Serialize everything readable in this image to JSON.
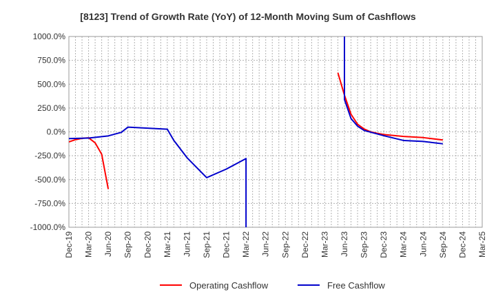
{
  "chart_data": {
    "type": "line",
    "title": "[8123]  Trend of Growth Rate (YoY) of 12-Month Moving Sum of Cashflows",
    "xlabel": "",
    "ylabel": "",
    "ylim": [
      -1000,
      1000
    ],
    "y_ticks": [
      "1000.0%",
      "750.0%",
      "500.0%",
      "250.0%",
      "0.0%",
      "-250.0%",
      "-500.0%",
      "-750.0%",
      "-1000.0%"
    ],
    "y_tick_values": [
      1000,
      750,
      500,
      250,
      0,
      -250,
      -500,
      -750,
      -1000
    ],
    "x_ticks": [
      "Dec-19",
      "Mar-20",
      "Jun-20",
      "Sep-20",
      "Dec-20",
      "Mar-21",
      "Jun-21",
      "Sep-21",
      "Dec-21",
      "Mar-22",
      "Jun-22",
      "Sep-22",
      "Dec-22",
      "Mar-23",
      "Jun-23",
      "Sep-23",
      "Dec-23",
      "Mar-24",
      "Jun-24",
      "Sep-24",
      "Dec-24",
      "Mar-25"
    ],
    "x_range_months": [
      "2019-12",
      "2025-03"
    ],
    "grid": true,
    "legend_position": "bottom",
    "series": [
      {
        "name": "Operating Cashflow",
        "color": "#ff0000",
        "segments": [
          [
            [
              "2019-12",
              -105
            ],
            [
              "2020-01",
              -82
            ],
            [
              "2020-02",
              -68
            ],
            [
              "2020-03",
              -62
            ],
            [
              "2020-04",
              -115
            ],
            [
              "2020-05",
              -235
            ],
            [
              "2020-06",
              -600
            ]
          ],
          [
            [
              "2023-05",
              620
            ],
            [
              "2023-06",
              385
            ],
            [
              "2023-07",
              185
            ],
            [
              "2023-08",
              80
            ],
            [
              "2023-09",
              30
            ],
            [
              "2023-10",
              0
            ],
            [
              "2023-11",
              -15
            ],
            [
              "2023-12",
              -28
            ],
            [
              "2024-03",
              -48
            ],
            [
              "2024-06",
              -60
            ],
            [
              "2024-09",
              -85
            ]
          ]
        ]
      },
      {
        "name": "Free Cashflow",
        "color": "#0000cc",
        "segments": [
          [
            [
              "2019-12",
              -70
            ],
            [
              "2020-03",
              -65
            ],
            [
              "2020-06",
              -42
            ],
            [
              "2020-08",
              -5
            ],
            [
              "2020-09",
              50
            ],
            [
              "2021-03",
              28
            ],
            [
              "2021-04",
              -90
            ],
            [
              "2021-06",
              -270
            ],
            [
              "2021-09",
              -480
            ],
            [
              "2021-12",
              -390
            ],
            [
              "2022-03",
              -280
            ],
            [
              "2022-03",
              -1000
            ]
          ],
          [
            [
              "2023-06",
              1000
            ],
            [
              "2023-06",
              340
            ],
            [
              "2023-07",
              140
            ],
            [
              "2023-08",
              60
            ],
            [
              "2023-09",
              15
            ],
            [
              "2023-12",
              -40
            ],
            [
              "2024-03",
              -90
            ],
            [
              "2024-06",
              -100
            ],
            [
              "2024-09",
              -125
            ]
          ]
        ]
      }
    ]
  }
}
